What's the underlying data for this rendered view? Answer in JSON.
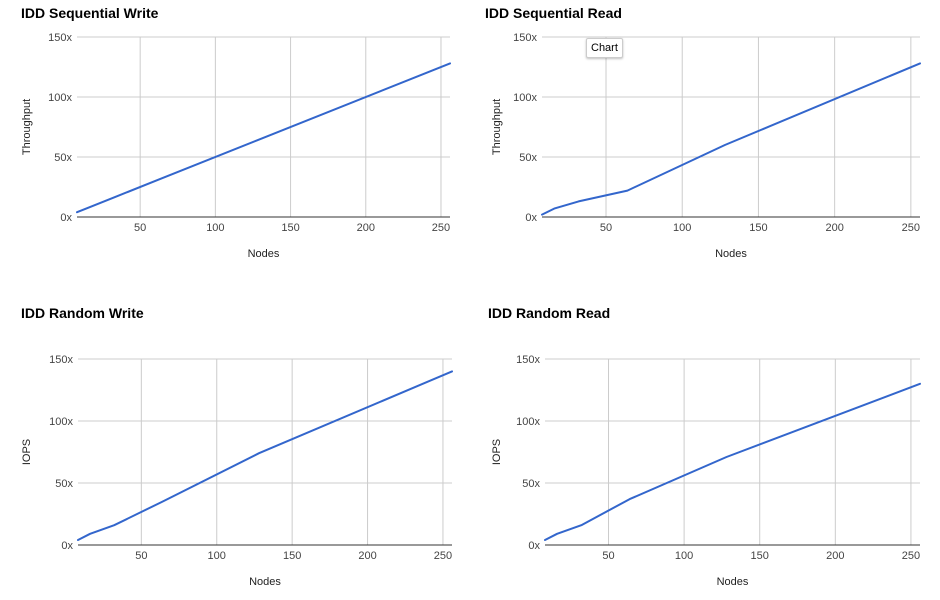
{
  "tooltip": {
    "text": "Chart"
  },
  "colors": {
    "series": "#3366cc",
    "grid": "#cccccc",
    "axis": "#333333",
    "tick_text": "#444444",
    "label_text": "#222222"
  },
  "chart_data": [
    {
      "type": "line",
      "title": "IDD Sequential Write",
      "xlabel": "Nodes",
      "ylabel": "Throughput",
      "xlim": [
        8,
        256
      ],
      "ylim": [
        0,
        150
      ],
      "x_ticks": [
        50,
        100,
        150,
        200,
        250
      ],
      "y_ticks": [
        0,
        50,
        100,
        150
      ],
      "y_tick_labels": [
        "0x",
        "50x",
        "100x",
        "150x"
      ],
      "grid": true,
      "series": [
        {
          "x": [
            8,
            16,
            32,
            64,
            128,
            256
          ],
          "y": [
            4,
            8,
            16,
            32,
            64,
            128
          ]
        }
      ]
    },
    {
      "type": "line",
      "title": "IDD Sequential Read",
      "xlabel": "Nodes",
      "ylabel": "Throughput",
      "xlim": [
        8,
        256
      ],
      "ylim": [
        0,
        150
      ],
      "x_ticks": [
        50,
        100,
        150,
        200,
        250
      ],
      "y_ticks": [
        0,
        50,
        100,
        150
      ],
      "y_tick_labels": [
        "0x",
        "50x",
        "100x",
        "150x"
      ],
      "grid": true,
      "series": [
        {
          "x": [
            8,
            16,
            32,
            64,
            128,
            256
          ],
          "y": [
            2,
            7,
            13,
            22,
            60,
            128
          ]
        }
      ]
    },
    {
      "type": "line",
      "title": "IDD Random Write",
      "xlabel": "Nodes",
      "ylabel": "IOPS",
      "xlim": [
        8,
        256
      ],
      "ylim": [
        0,
        150
      ],
      "x_ticks": [
        50,
        100,
        150,
        200,
        250
      ],
      "y_ticks": [
        0,
        50,
        100,
        150
      ],
      "y_tick_labels": [
        "0x",
        "50x",
        "100x",
        "150x"
      ],
      "grid": true,
      "series": [
        {
          "x": [
            8,
            16,
            32,
            64,
            128,
            256
          ],
          "y": [
            4,
            9,
            16,
            35,
            74,
            140
          ]
        }
      ]
    },
    {
      "type": "line",
      "title": "IDD Random Read",
      "xlabel": "Nodes",
      "ylabel": "IOPS",
      "xlim": [
        8,
        256
      ],
      "ylim": [
        0,
        150
      ],
      "x_ticks": [
        50,
        100,
        150,
        200,
        250
      ],
      "y_ticks": [
        0,
        50,
        100,
        150
      ],
      "y_tick_labels": [
        "0x",
        "50x",
        "100x",
        "150x"
      ],
      "grid": true,
      "series": [
        {
          "x": [
            8,
            16,
            32,
            64,
            128,
            256
          ],
          "y": [
            4,
            9,
            16,
            37,
            71,
            130
          ]
        }
      ]
    }
  ]
}
